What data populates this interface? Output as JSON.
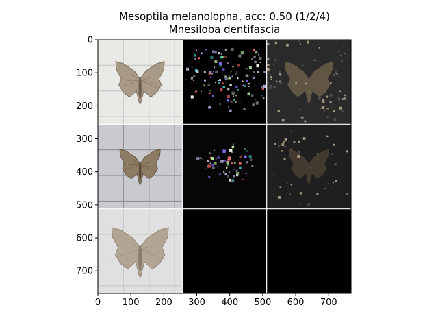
{
  "figure": {
    "title_line1": "Mesoptila melanolopha, acc: 0.50 (1/2/4)",
    "title_line2": "Mnesiloba dentifascia"
  },
  "chart_data": {
    "type": "image-grid",
    "xlim": [
      0,
      768
    ],
    "ylim": [
      768,
      0
    ],
    "grid": false,
    "x_ticks": [
      0,
      100,
      200,
      300,
      400,
      500,
      600,
      700
    ],
    "y_ticks": [
      0,
      100,
      200,
      300,
      400,
      500,
      600,
      700
    ],
    "tile_size": 256,
    "rows": 3,
    "cols": 3,
    "panels": [
      {
        "row": 0,
        "col": 0,
        "kind": "photo",
        "bg": "#e9eae6",
        "grid_line": "#c9cbc8",
        "wing": "#a89a86",
        "wing_dark": "#6e604f"
      },
      {
        "row": 0,
        "col": 1,
        "kind": "saliency",
        "bg": "#000000"
      },
      {
        "row": 0,
        "col": 2,
        "kind": "masked",
        "bg": "#2a2a2a",
        "wing": "#6b5e48"
      },
      {
        "row": 1,
        "col": 0,
        "kind": "photo",
        "bg": "#c9cace",
        "grid_line": "#8e9096",
        "wing": "#8d7b63",
        "wing_dark": "#5a4b39"
      },
      {
        "row": 1,
        "col": 1,
        "kind": "saliency",
        "bg": "#060606"
      },
      {
        "row": 1,
        "col": 2,
        "kind": "masked",
        "bg": "#1f1f1f",
        "wing": "#4a4032"
      },
      {
        "row": 2,
        "col": 0,
        "kind": "photo",
        "bg": "#dfe0df",
        "grid_line": "#c5c7c8",
        "wing": "#b2a594",
        "wing_dark": "#8a7c6b"
      },
      {
        "row": 2,
        "col": 1,
        "kind": "blank",
        "bg": "#000000"
      },
      {
        "row": 2,
        "col": 2,
        "kind": "blank",
        "bg": "#000000"
      }
    ]
  }
}
